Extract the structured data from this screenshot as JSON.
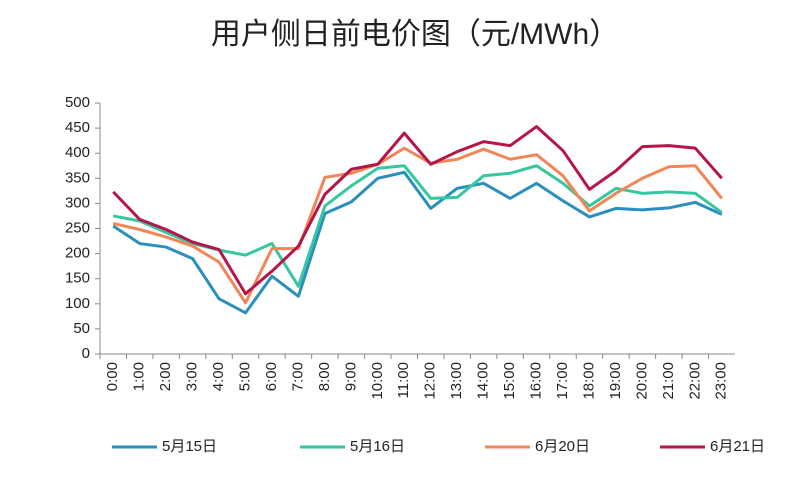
{
  "chart_data": {
    "type": "line",
    "title": "用户侧日前电价图（元/MWh）",
    "categories": [
      "0:00",
      "1:00",
      "2:00",
      "3:00",
      "4:00",
      "5:00",
      "6:00",
      "7:00",
      "8:00",
      "9:00",
      "10:00",
      "11:00",
      "12:00",
      "13:00",
      "14:00",
      "15:00",
      "16:00",
      "17:00",
      "18:00",
      "19:00",
      "20:00",
      "21:00",
      "22:00",
      "23:00"
    ],
    "series": [
      {
        "name": "5月15日",
        "color": "#2a8fbd",
        "values": [
          255,
          220,
          213,
          190,
          110,
          82,
          155,
          115,
          280,
          303,
          350,
          362,
          290,
          330,
          340,
          310,
          340,
          305,
          273,
          290,
          287,
          291,
          302,
          278
        ]
      },
      {
        "name": "5月16日",
        "color": "#36c6a0",
        "values": [
          275,
          265,
          242,
          220,
          207,
          197,
          220,
          135,
          295,
          335,
          370,
          375,
          310,
          312,
          355,
          360,
          375,
          340,
          295,
          330,
          320,
          323,
          320,
          282
        ]
      },
      {
        "name": "6月20日",
        "color": "#f0875a",
        "values": [
          260,
          248,
          233,
          215,
          183,
          102,
          210,
          210,
          352,
          360,
          378,
          410,
          380,
          388,
          408,
          388,
          397,
          355,
          285,
          320,
          350,
          373,
          375,
          310
        ]
      },
      {
        "name": "6月21日",
        "color": "#b5164a",
        "values": [
          323,
          268,
          248,
          223,
          208,
          120,
          165,
          215,
          318,
          368,
          378,
          440,
          378,
          403,
          423,
          415,
          453,
          405,
          328,
          365,
          413,
          415,
          410,
          350
        ]
      }
    ],
    "ylim": [
      0,
      500
    ],
    "yticks": [
      0,
      50,
      100,
      150,
      200,
      250,
      300,
      350,
      400,
      450,
      500
    ],
    "grid": false,
    "legend": "bottom"
  }
}
